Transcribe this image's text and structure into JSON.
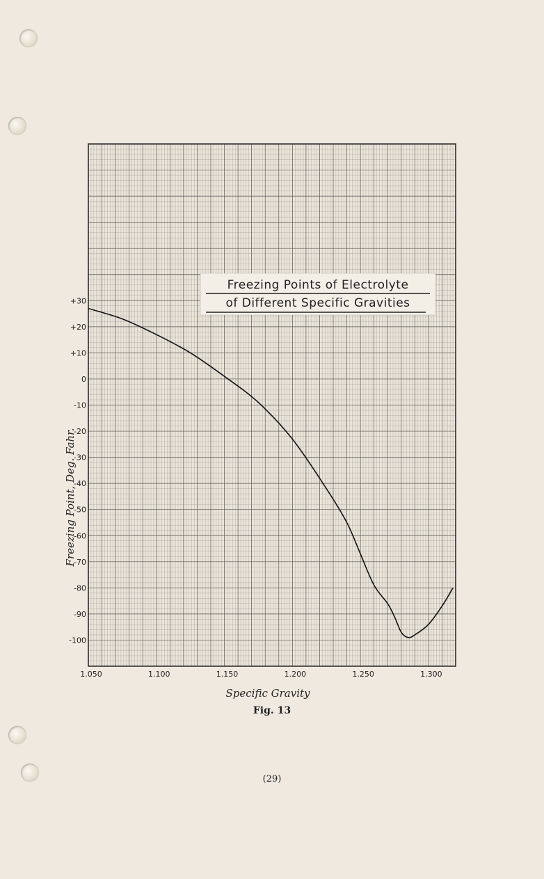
{
  "chart_data": {
    "type": "line",
    "title": [
      "Freezing Points of Electrolyte",
      "of Different Specific Gravities"
    ],
    "xlabel": "Specific Gravity",
    "ylabel": "Freezing Point, Deg. Fahr.",
    "xlim": [
      1.05,
      1.32
    ],
    "ylim": [
      -110,
      90
    ],
    "xticks": [
      1.05,
      1.1,
      1.15,
      1.2,
      1.25,
      1.3
    ],
    "xtick_labels": [
      "1.050",
      "1.100",
      "1.150",
      "1.200",
      "1.250",
      "1.300"
    ],
    "yticks": [
      30,
      20,
      10,
      0,
      -10,
      -20,
      -30,
      -40,
      -50,
      -60,
      -70,
      -80,
      -90,
      -100
    ],
    "ytick_labels": [
      "+30",
      "+20",
      "+10",
      "0",
      "-10",
      "-20",
      "-30",
      "-40",
      "-50",
      "-60",
      "-70",
      "-80",
      "-90",
      "-100"
    ],
    "grid": true,
    "series": [
      {
        "x": [
          1.05,
          1.075,
          1.1,
          1.125,
          1.15,
          1.175,
          1.2,
          1.225,
          1.24,
          1.25,
          1.26,
          1.27,
          1.275,
          1.28,
          1.285,
          1.29,
          1.3,
          1.31,
          1.318
        ],
        "y": [
          27,
          23,
          17,
          10,
          1,
          -9,
          -23,
          -42,
          -55,
          -67,
          -79,
          -86,
          -91,
          -97,
          -99,
          -98,
          -94,
          -87,
          -80
        ]
      }
    ]
  },
  "caption": {
    "figure": "Fig. 13",
    "page_number": "(29)"
  }
}
